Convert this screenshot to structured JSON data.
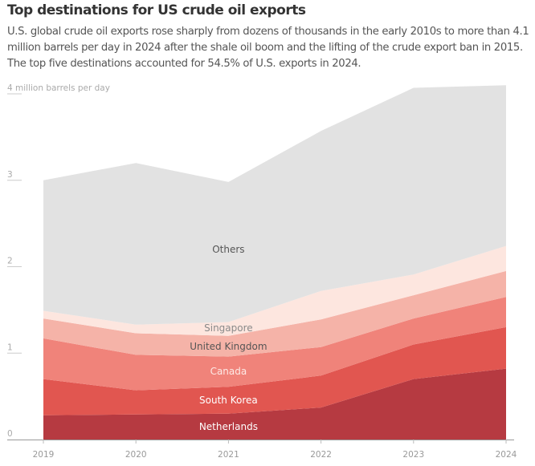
{
  "chart_data": {
    "type": "area",
    "stacked": true,
    "title": "Top destinations for US crude oil exports",
    "subtitle": "U.S. global crude oil exports rose sharply from dozens of thousands in the early 2010s to more than 4.1 million barrels per day in 2024 after the shale oil boom and the lifting of the crude export ban in 2015. The top five destinations accounted for 54.5% of U.S. exports in 2024.",
    "ylabel": "4 million barrels per day",
    "xlabel": "",
    "ylim": [
      0,
      4
    ],
    "y_ticks": [
      {
        "value": 0,
        "label": "0"
      },
      {
        "value": 1,
        "label": "1"
      },
      {
        "value": 2,
        "label": "2"
      },
      {
        "value": 3,
        "label": "3"
      },
      {
        "value": 4,
        "label": "4 million barrels per day"
      }
    ],
    "x": [
      "2019",
      "2020",
      "2021",
      "2022",
      "2023",
      "2024"
    ],
    "grid": false,
    "series": [
      {
        "name": "Netherlands",
        "color": "#b63a41",
        "label_color": "#ffffff",
        "values": [
          0.28,
          0.29,
          0.3,
          0.37,
          0.7,
          0.82
        ]
      },
      {
        "name": "South Korea",
        "color": "#e15650",
        "label_color": "#ffffff",
        "values": [
          0.42,
          0.28,
          0.31,
          0.37,
          0.4,
          0.48
        ]
      },
      {
        "name": "Canada",
        "color": "#f0837a",
        "label_color": "#fde9e5",
        "values": [
          0.47,
          0.41,
          0.35,
          0.33,
          0.3,
          0.35
        ]
      },
      {
        "name": "United Kingdom",
        "color": "#f5b3a8",
        "label_color": "#555555",
        "values": [
          0.23,
          0.25,
          0.24,
          0.32,
          0.27,
          0.3
        ]
      },
      {
        "name": "Singapore",
        "color": "#fde6df",
        "label_color": "#8a8a8a",
        "values": [
          0.09,
          0.1,
          0.16,
          0.33,
          0.24,
          0.29
        ]
      },
      {
        "name": "Others",
        "color": "#e2e2e2",
        "label_color": "#555555",
        "values": [
          1.51,
          1.87,
          1.62,
          1.85,
          2.16,
          1.86
        ]
      }
    ]
  }
}
